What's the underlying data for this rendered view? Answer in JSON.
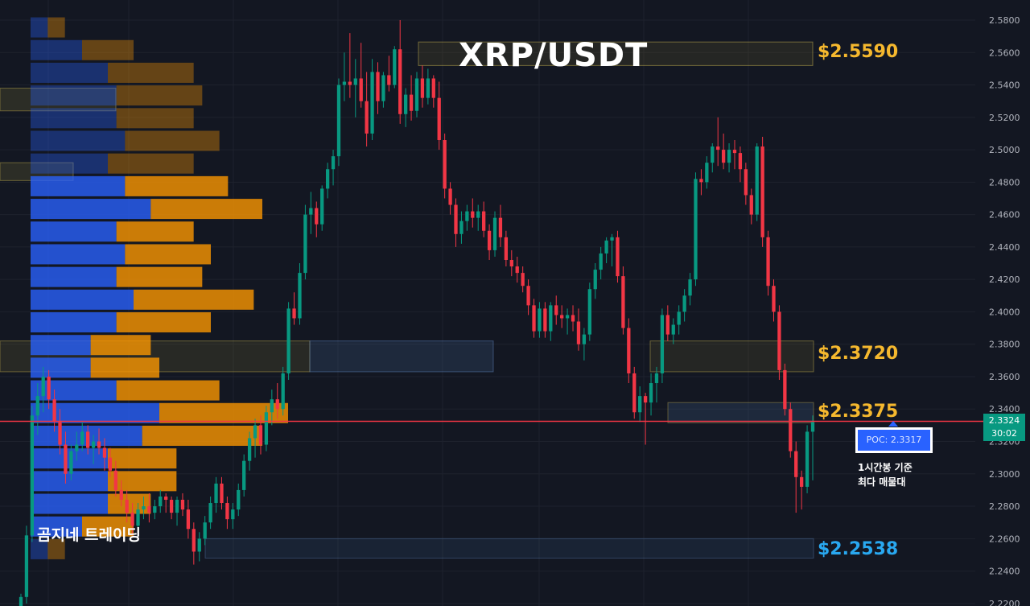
{
  "chart_data": {
    "type": "candlestick",
    "title": "XRP/USDT",
    "symbol": "XRP/USDT",
    "ylim": [
      2.22,
      2.59
    ],
    "y_ticks": [
      "2.2200",
      "2.2400",
      "2.2600",
      "2.2800",
      "2.3000",
      "2.3200",
      "2.3400",
      "2.3600",
      "2.3800",
      "2.4000",
      "2.4200",
      "2.4400",
      "2.4600",
      "2.4800",
      "2.5000",
      "2.5200",
      "2.5400",
      "2.5600",
      "2.5800"
    ],
    "grid": true,
    "candles": [
      {
        "o": 2.218,
        "h": 2.226,
        "l": 2.206,
        "c": 2.224
      },
      {
        "o": 2.224,
        "h": 2.268,
        "l": 2.22,
        "c": 2.262
      },
      {
        "o": 2.262,
        "h": 2.342,
        "l": 2.258,
        "c": 2.336
      },
      {
        "o": 2.336,
        "h": 2.356,
        "l": 2.324,
        "c": 2.348
      },
      {
        "o": 2.348,
        "h": 2.366,
        "l": 2.338,
        "c": 2.36
      },
      {
        "o": 2.36,
        "h": 2.364,
        "l": 2.34,
        "c": 2.346
      },
      {
        "o": 2.346,
        "h": 2.352,
        "l": 2.326,
        "c": 2.332
      },
      {
        "o": 2.332,
        "h": 2.34,
        "l": 2.312,
        "c": 2.318
      },
      {
        "o": 2.318,
        "h": 2.326,
        "l": 2.294,
        "c": 2.3
      },
      {
        "o": 2.3,
        "h": 2.318,
        "l": 2.296,
        "c": 2.314
      },
      {
        "o": 2.314,
        "h": 2.326,
        "l": 2.308,
        "c": 2.318
      },
      {
        "o": 2.318,
        "h": 2.332,
        "l": 2.314,
        "c": 2.326
      },
      {
        "o": 2.326,
        "h": 2.33,
        "l": 2.312,
        "c": 2.316
      },
      {
        "o": 2.316,
        "h": 2.324,
        "l": 2.306,
        "c": 2.32
      },
      {
        "o": 2.32,
        "h": 2.328,
        "l": 2.312,
        "c": 2.316
      },
      {
        "o": 2.316,
        "h": 2.322,
        "l": 2.302,
        "c": 2.31
      },
      {
        "o": 2.31,
        "h": 2.316,
        "l": 2.298,
        "c": 2.302
      },
      {
        "o": 2.302,
        "h": 2.308,
        "l": 2.286,
        "c": 2.29
      },
      {
        "o": 2.29,
        "h": 2.296,
        "l": 2.28,
        "c": 2.284
      },
      {
        "o": 2.284,
        "h": 2.29,
        "l": 2.27,
        "c": 2.276
      },
      {
        "o": 2.276,
        "h": 2.282,
        "l": 2.262,
        "c": 2.268
      },
      {
        "o": 2.268,
        "h": 2.282,
        "l": 2.264,
        "c": 2.278
      },
      {
        "o": 2.278,
        "h": 2.286,
        "l": 2.272,
        "c": 2.28
      },
      {
        "o": 2.28,
        "h": 2.288,
        "l": 2.27,
        "c": 2.276
      },
      {
        "o": 2.276,
        "h": 2.284,
        "l": 2.272,
        "c": 2.28
      },
      {
        "o": 2.28,
        "h": 2.29,
        "l": 2.276,
        "c": 2.286
      },
      {
        "o": 2.286,
        "h": 2.288,
        "l": 2.276,
        "c": 2.284
      },
      {
        "o": 2.284,
        "h": 2.286,
        "l": 2.272,
        "c": 2.276
      },
      {
        "o": 2.276,
        "h": 2.286,
        "l": 2.268,
        "c": 2.284
      },
      {
        "o": 2.284,
        "h": 2.288,
        "l": 2.274,
        "c": 2.278
      },
      {
        "o": 2.278,
        "h": 2.284,
        "l": 2.26,
        "c": 2.266
      },
      {
        "o": 2.266,
        "h": 2.27,
        "l": 2.244,
        "c": 2.252
      },
      {
        "o": 2.252,
        "h": 2.264,
        "l": 2.246,
        "c": 2.26
      },
      {
        "o": 2.26,
        "h": 2.274,
        "l": 2.256,
        "c": 2.27
      },
      {
        "o": 2.27,
        "h": 2.286,
        "l": 2.266,
        "c": 2.282
      },
      {
        "o": 2.282,
        "h": 2.298,
        "l": 2.276,
        "c": 2.294
      },
      {
        "o": 2.294,
        "h": 2.298,
        "l": 2.278,
        "c": 2.282
      },
      {
        "o": 2.282,
        "h": 2.286,
        "l": 2.266,
        "c": 2.272
      },
      {
        "o": 2.272,
        "h": 2.282,
        "l": 2.266,
        "c": 2.278
      },
      {
        "o": 2.278,
        "h": 2.294,
        "l": 2.274,
        "c": 2.29
      },
      {
        "o": 2.29,
        "h": 2.312,
        "l": 2.286,
        "c": 2.308
      },
      {
        "o": 2.308,
        "h": 2.326,
        "l": 2.302,
        "c": 2.322
      },
      {
        "o": 2.322,
        "h": 2.334,
        "l": 2.31,
        "c": 2.33
      },
      {
        "o": 2.33,
        "h": 2.336,
        "l": 2.312,
        "c": 2.318
      },
      {
        "o": 2.318,
        "h": 2.342,
        "l": 2.314,
        "c": 2.338
      },
      {
        "o": 2.338,
        "h": 2.352,
        "l": 2.33,
        "c": 2.346
      },
      {
        "o": 2.346,
        "h": 2.356,
        "l": 2.334,
        "c": 2.34
      },
      {
        "o": 2.34,
        "h": 2.366,
        "l": 2.336,
        "c": 2.362
      },
      {
        "o": 2.362,
        "h": 2.406,
        "l": 2.358,
        "c": 2.402
      },
      {
        "o": 2.402,
        "h": 2.412,
        "l": 2.392,
        "c": 2.396
      },
      {
        "o": 2.396,
        "h": 2.43,
        "l": 2.392,
        "c": 2.424
      },
      {
        "o": 2.424,
        "h": 2.466,
        "l": 2.42,
        "c": 2.46
      },
      {
        "o": 2.46,
        "h": 2.474,
        "l": 2.448,
        "c": 2.464
      },
      {
        "o": 2.464,
        "h": 2.468,
        "l": 2.446,
        "c": 2.454
      },
      {
        "o": 2.454,
        "h": 2.478,
        "l": 2.45,
        "c": 2.476
      },
      {
        "o": 2.476,
        "h": 2.492,
        "l": 2.47,
        "c": 2.488
      },
      {
        "o": 2.488,
        "h": 2.5,
        "l": 2.478,
        "c": 2.496
      },
      {
        "o": 2.496,
        "h": 2.544,
        "l": 2.49,
        "c": 2.54
      },
      {
        "o": 2.54,
        "h": 2.56,
        "l": 2.53,
        "c": 2.542
      },
      {
        "o": 2.542,
        "h": 2.572,
        "l": 2.532,
        "c": 2.54
      },
      {
        "o": 2.54,
        "h": 2.556,
        "l": 2.52,
        "c": 2.544
      },
      {
        "o": 2.544,
        "h": 2.566,
        "l": 2.526,
        "c": 2.53
      },
      {
        "o": 2.53,
        "h": 2.548,
        "l": 2.502,
        "c": 2.51
      },
      {
        "o": 2.51,
        "h": 2.556,
        "l": 2.506,
        "c": 2.548
      },
      {
        "o": 2.548,
        "h": 2.554,
        "l": 2.522,
        "c": 2.53
      },
      {
        "o": 2.53,
        "h": 2.548,
        "l": 2.526,
        "c": 2.546
      },
      {
        "o": 2.546,
        "h": 2.558,
        "l": 2.536,
        "c": 2.54
      },
      {
        "o": 2.54,
        "h": 2.564,
        "l": 2.538,
        "c": 2.562
      },
      {
        "o": 2.562,
        "h": 2.58,
        "l": 2.516,
        "c": 2.522
      },
      {
        "o": 2.522,
        "h": 2.538,
        "l": 2.514,
        "c": 2.534
      },
      {
        "o": 2.534,
        "h": 2.546,
        "l": 2.518,
        "c": 2.524
      },
      {
        "o": 2.524,
        "h": 2.548,
        "l": 2.52,
        "c": 2.544
      },
      {
        "o": 2.544,
        "h": 2.552,
        "l": 2.526,
        "c": 2.532
      },
      {
        "o": 2.532,
        "h": 2.55,
        "l": 2.528,
        "c": 2.544
      },
      {
        "o": 2.544,
        "h": 2.546,
        "l": 2.526,
        "c": 2.532
      },
      {
        "o": 2.532,
        "h": 2.542,
        "l": 2.5,
        "c": 2.506
      },
      {
        "o": 2.506,
        "h": 2.51,
        "l": 2.47,
        "c": 2.476
      },
      {
        "o": 2.476,
        "h": 2.48,
        "l": 2.46,
        "c": 2.466
      },
      {
        "o": 2.466,
        "h": 2.47,
        "l": 2.44,
        "c": 2.448
      },
      {
        "o": 2.448,
        "h": 2.462,
        "l": 2.442,
        "c": 2.456
      },
      {
        "o": 2.456,
        "h": 2.466,
        "l": 2.45,
        "c": 2.462
      },
      {
        "o": 2.462,
        "h": 2.47,
        "l": 2.452,
        "c": 2.458
      },
      {
        "o": 2.458,
        "h": 2.466,
        "l": 2.45,
        "c": 2.462
      },
      {
        "o": 2.462,
        "h": 2.468,
        "l": 2.446,
        "c": 2.45
      },
      {
        "o": 2.45,
        "h": 2.454,
        "l": 2.432,
        "c": 2.438
      },
      {
        "o": 2.438,
        "h": 2.462,
        "l": 2.434,
        "c": 2.458
      },
      {
        "o": 2.458,
        "h": 2.466,
        "l": 2.44,
        "c": 2.446
      },
      {
        "o": 2.446,
        "h": 2.45,
        "l": 2.428,
        "c": 2.432
      },
      {
        "o": 2.432,
        "h": 2.438,
        "l": 2.422,
        "c": 2.428
      },
      {
        "o": 2.428,
        "h": 2.434,
        "l": 2.418,
        "c": 2.424
      },
      {
        "o": 2.424,
        "h": 2.428,
        "l": 2.412,
        "c": 2.416
      },
      {
        "o": 2.416,
        "h": 2.42,
        "l": 2.398,
        "c": 2.404
      },
      {
        "o": 2.404,
        "h": 2.408,
        "l": 2.384,
        "c": 2.388
      },
      {
        "o": 2.388,
        "h": 2.406,
        "l": 2.384,
        "c": 2.402
      },
      {
        "o": 2.402,
        "h": 2.406,
        "l": 2.384,
        "c": 2.388
      },
      {
        "o": 2.388,
        "h": 2.406,
        "l": 2.382,
        "c": 2.404
      },
      {
        "o": 2.404,
        "h": 2.41,
        "l": 2.392,
        "c": 2.398
      },
      {
        "o": 2.398,
        "h": 2.404,
        "l": 2.39,
        "c": 2.396
      },
      {
        "o": 2.396,
        "h": 2.402,
        "l": 2.386,
        "c": 2.398
      },
      {
        "o": 2.398,
        "h": 2.404,
        "l": 2.388,
        "c": 2.394
      },
      {
        "o": 2.394,
        "h": 2.402,
        "l": 2.376,
        "c": 2.38
      },
      {
        "o": 2.38,
        "h": 2.39,
        "l": 2.37,
        "c": 2.386
      },
      {
        "o": 2.386,
        "h": 2.418,
        "l": 2.382,
        "c": 2.414
      },
      {
        "o": 2.414,
        "h": 2.43,
        "l": 2.408,
        "c": 2.426
      },
      {
        "o": 2.426,
        "h": 2.44,
        "l": 2.42,
        "c": 2.436
      },
      {
        "o": 2.436,
        "h": 2.446,
        "l": 2.43,
        "c": 2.444
      },
      {
        "o": 2.444,
        "h": 2.448,
        "l": 2.428,
        "c": 2.446
      },
      {
        "o": 2.446,
        "h": 2.45,
        "l": 2.418,
        "c": 2.422
      },
      {
        "o": 2.422,
        "h": 2.428,
        "l": 2.386,
        "c": 2.39
      },
      {
        "o": 2.39,
        "h": 2.396,
        "l": 2.356,
        "c": 2.362
      },
      {
        "o": 2.362,
        "h": 2.366,
        "l": 2.334,
        "c": 2.338
      },
      {
        "o": 2.338,
        "h": 2.354,
        "l": 2.332,
        "c": 2.348
      },
      {
        "o": 2.348,
        "h": 2.35,
        "l": 2.318,
        "c": 2.344
      },
      {
        "o": 2.344,
        "h": 2.362,
        "l": 2.336,
        "c": 2.356
      },
      {
        "o": 2.356,
        "h": 2.366,
        "l": 2.344,
        "c": 2.362
      },
      {
        "o": 2.362,
        "h": 2.402,
        "l": 2.356,
        "c": 2.398
      },
      {
        "o": 2.398,
        "h": 2.404,
        "l": 2.382,
        "c": 2.386
      },
      {
        "o": 2.386,
        "h": 2.396,
        "l": 2.38,
        "c": 2.392
      },
      {
        "o": 2.392,
        "h": 2.404,
        "l": 2.386,
        "c": 2.4
      },
      {
        "o": 2.4,
        "h": 2.414,
        "l": 2.394,
        "c": 2.41
      },
      {
        "o": 2.41,
        "h": 2.424,
        "l": 2.404,
        "c": 2.42
      },
      {
        "o": 2.42,
        "h": 2.486,
        "l": 2.416,
        "c": 2.482
      },
      {
        "o": 2.482,
        "h": 2.488,
        "l": 2.472,
        "c": 2.48
      },
      {
        "o": 2.48,
        "h": 2.496,
        "l": 2.476,
        "c": 2.492
      },
      {
        "o": 2.492,
        "h": 2.504,
        "l": 2.486,
        "c": 2.502
      },
      {
        "o": 2.502,
        "h": 2.52,
        "l": 2.49,
        "c": 2.5
      },
      {
        "o": 2.5,
        "h": 2.51,
        "l": 2.488,
        "c": 2.492
      },
      {
        "o": 2.492,
        "h": 2.504,
        "l": 2.486,
        "c": 2.5
      },
      {
        "o": 2.5,
        "h": 2.506,
        "l": 2.488,
        "c": 2.498
      },
      {
        "o": 2.498,
        "h": 2.502,
        "l": 2.48,
        "c": 2.488
      },
      {
        "o": 2.488,
        "h": 2.492,
        "l": 2.466,
        "c": 2.472
      },
      {
        "o": 2.472,
        "h": 2.476,
        "l": 2.454,
        "c": 2.46
      },
      {
        "o": 2.46,
        "h": 2.504,
        "l": 2.456,
        "c": 2.502
      },
      {
        "o": 2.502,
        "h": 2.508,
        "l": 2.44,
        "c": 2.446
      },
      {
        "o": 2.446,
        "h": 2.45,
        "l": 2.41,
        "c": 2.416
      },
      {
        "o": 2.416,
        "h": 2.42,
        "l": 2.394,
        "c": 2.4
      },
      {
        "o": 2.4,
        "h": 2.404,
        "l": 2.358,
        "c": 2.364
      },
      {
        "o": 2.364,
        "h": 2.368,
        "l": 2.336,
        "c": 2.34
      },
      {
        "o": 2.34,
        "h": 2.344,
        "l": 2.31,
        "c": 2.314
      },
      {
        "o": 2.314,
        "h": 2.32,
        "l": 2.276,
        "c": 2.298
      },
      {
        "o": 2.298,
        "h": 2.302,
        "l": 2.278,
        "c": 2.292
      },
      {
        "o": 2.292,
        "h": 2.33,
        "l": 2.288,
        "c": 2.326
      },
      {
        "o": 2.326,
        "h": 2.336,
        "l": 2.296,
        "c": 2.332
      }
    ],
    "current_price": "2.3324",
    "countdown": "30:02",
    "poc_label": "POC: 2.3317",
    "levels": [
      {
        "id": "lvl_2559",
        "label": "$2.5590",
        "value": 2.559,
        "color": "#f5b82e"
      },
      {
        "id": "lvl_2372",
        "label": "$2.3720",
        "value": 2.372,
        "color": "#f5b82e"
      },
      {
        "id": "lvl_23375",
        "label": "$2.3375",
        "value": 2.3375,
        "color": "#f5b82e"
      },
      {
        "id": "lvl_22538",
        "label": "$2.2538",
        "value": 2.2538,
        "color": "#29a8f0"
      }
    ],
    "volume_profile": [
      {
        "price": 2.575,
        "buy": 2,
        "sell": 2
      },
      {
        "price": 2.561,
        "buy": 6,
        "sell": 6
      },
      {
        "price": 2.547,
        "buy": 9,
        "sell": 10
      },
      {
        "price": 2.533,
        "buy": 10,
        "sell": 10
      },
      {
        "price": 2.519,
        "buy": 10,
        "sell": 9
      },
      {
        "price": 2.505,
        "buy": 11,
        "sell": 11
      },
      {
        "price": 2.491,
        "buy": 9,
        "sell": 10
      },
      {
        "price": 2.477,
        "buy": 11,
        "sell": 12
      },
      {
        "price": 2.463,
        "buy": 14,
        "sell": 13
      },
      {
        "price": 2.449,
        "buy": 10,
        "sell": 9
      },
      {
        "price": 2.435,
        "buy": 11,
        "sell": 10
      },
      {
        "price": 2.421,
        "buy": 10,
        "sell": 10
      },
      {
        "price": 2.407,
        "buy": 12,
        "sell": 14
      },
      {
        "price": 2.393,
        "buy": 10,
        "sell": 11
      },
      {
        "price": 2.379,
        "buy": 7,
        "sell": 7
      },
      {
        "price": 2.365,
        "buy": 7,
        "sell": 8
      },
      {
        "price": 2.351,
        "buy": 10,
        "sell": 12
      },
      {
        "price": 2.337,
        "buy": 15,
        "sell": 15
      },
      {
        "price": 2.323,
        "buy": 13,
        "sell": 14
      },
      {
        "price": 2.309,
        "buy": 9,
        "sell": 8
      },
      {
        "price": 2.295,
        "buy": 9,
        "sell": 8
      },
      {
        "price": 2.281,
        "buy": 9,
        "sell": 5
      },
      {
        "price": 2.267,
        "buy": 6,
        "sell": 6
      },
      {
        "price": 2.253,
        "buy": 2,
        "sell": 2
      }
    ],
    "colors": {
      "up": "#089981",
      "down": "#f23645",
      "buy": "#2962ff",
      "sell": "#ff9800",
      "price_line": "#f23645",
      "background": "#131722",
      "axis_text": "#b2b5be",
      "grid": "#1e222d"
    }
  },
  "watermark": "곰지네 트레이딩",
  "note_lines": [
    "1시간봉 기준",
    "최다 매물대"
  ]
}
